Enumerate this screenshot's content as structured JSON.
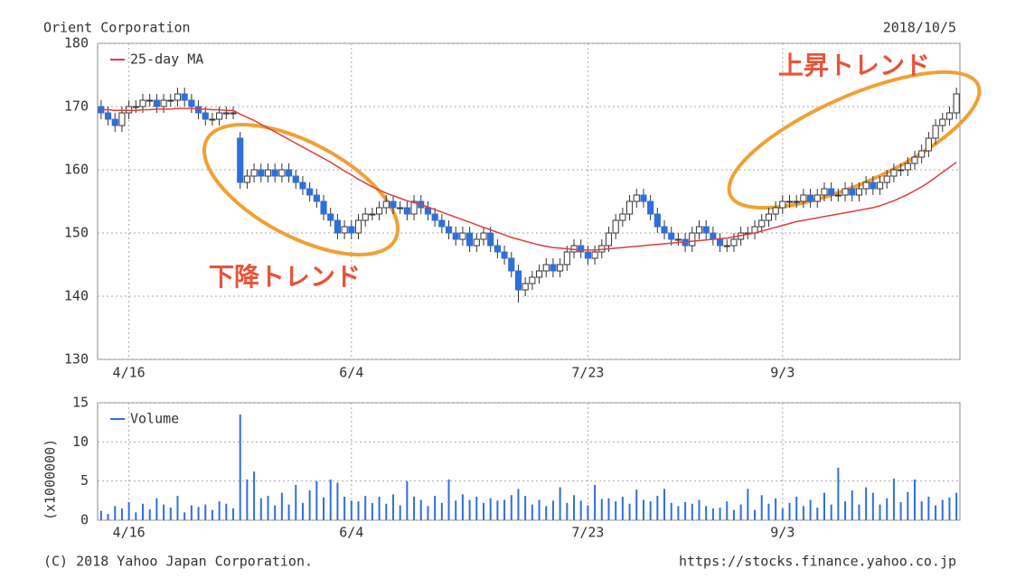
{
  "chart_data": [
    {
      "type": "candlestick",
      "title": "Orient Corporation",
      "date": "2018/10/5",
      "categories": [
        null,
        null,
        null,
        null,
        "4/16",
        null,
        null,
        null,
        null,
        null,
        null,
        null,
        null,
        null,
        null,
        null,
        null,
        null,
        null,
        null,
        null,
        null,
        null,
        null,
        null,
        null,
        null,
        null,
        null,
        null,
        null,
        null,
        null,
        null,
        null,
        null,
        "6/4",
        null,
        null,
        null,
        null,
        null,
        null,
        null,
        null,
        null,
        null,
        null,
        null,
        null,
        null,
        null,
        null,
        null,
        null,
        null,
        null,
        null,
        null,
        null,
        null,
        null,
        null,
        null,
        null,
        null,
        null,
        null,
        null,
        null,
        "7/23",
        null,
        null,
        null,
        null,
        null,
        null,
        null,
        null,
        null,
        null,
        null,
        null,
        null,
        null,
        null,
        null,
        null,
        null,
        null,
        null,
        null,
        null,
        null,
        null,
        null,
        null,
        null,
        "9/3",
        null,
        null,
        null,
        null,
        null,
        null,
        null,
        null,
        null,
        null,
        null,
        null,
        null,
        null,
        null,
        null,
        null,
        null,
        null,
        null,
        null,
        null,
        null,
        null,
        null
      ],
      "open": [
        170,
        169,
        168,
        167,
        169,
        170,
        170,
        171,
        171,
        170,
        171,
        171,
        172,
        171,
        170,
        169,
        168,
        168,
        169,
        169,
        165,
        158,
        159,
        160,
        159,
        160,
        159,
        160,
        159,
        158,
        157,
        156,
        155,
        153,
        152,
        150,
        151,
        150,
        152,
        153,
        153,
        154,
        155,
        154,
        154,
        153,
        155,
        154,
        153,
        152,
        151,
        150,
        149,
        150,
        148,
        149,
        150,
        148,
        147,
        146,
        144,
        141,
        142,
        143,
        144,
        145,
        144,
        145,
        147,
        148,
        147,
        146,
        147,
        148,
        150,
        152,
        153,
        155,
        156,
        155,
        153,
        151,
        150,
        149,
        149,
        148,
        150,
        151,
        150,
        149,
        148,
        148,
        149,
        150,
        150,
        151,
        152,
        153,
        154,
        155,
        155,
        155,
        156,
        155,
        156,
        157,
        156,
        156,
        157,
        156,
        157,
        158,
        157,
        158,
        159,
        160,
        160,
        161,
        162,
        163,
        165,
        167,
        168,
        169
      ],
      "high": [
        171,
        170,
        169,
        170,
        171,
        171,
        172,
        172,
        172,
        172,
        172,
        173,
        173,
        172,
        171,
        170,
        169,
        170,
        170,
        170,
        166,
        160,
        161,
        161,
        161,
        161,
        161,
        161,
        160,
        159,
        158,
        157,
        156,
        154,
        153,
        152,
        152,
        153,
        154,
        154,
        155,
        156,
        156,
        155,
        155,
        156,
        156,
        155,
        154,
        153,
        152,
        151,
        151,
        151,
        150,
        151,
        151,
        149,
        148,
        147,
        145,
        143,
        144,
        145,
        146,
        146,
        146,
        148,
        149,
        149,
        148,
        148,
        149,
        151,
        153,
        154,
        156,
        157,
        157,
        156,
        154,
        152,
        151,
        150,
        150,
        151,
        152,
        152,
        151,
        150,
        149,
        150,
        151,
        151,
        152,
        153,
        154,
        155,
        156,
        156,
        156,
        157,
        157,
        157,
        158,
        158,
        157,
        158,
        158,
        158,
        159,
        159,
        159,
        160,
        161,
        161,
        162,
        163,
        164,
        166,
        168,
        169,
        170,
        173
      ],
      "low": [
        168,
        167,
        166,
        166,
        168,
        169,
        169,
        170,
        169,
        169,
        170,
        170,
        170,
        169,
        168,
        167,
        167,
        167,
        168,
        168,
        157,
        157,
        158,
        158,
        158,
        158,
        158,
        158,
        157,
        156,
        155,
        154,
        152,
        151,
        149,
        149,
        149,
        149,
        151,
        152,
        152,
        153,
        153,
        153,
        152,
        152,
        153,
        152,
        151,
        150,
        149,
        148,
        148,
        147,
        147,
        148,
        147,
        146,
        145,
        143,
        139,
        140,
        141,
        142,
        143,
        143,
        143,
        144,
        146,
        146,
        145,
        145,
        146,
        147,
        149,
        151,
        152,
        154,
        154,
        152,
        150,
        149,
        148,
        148,
        147,
        147,
        149,
        149,
        148,
        147,
        147,
        147,
        148,
        149,
        149,
        150,
        151,
        152,
        153,
        154,
        154,
        154,
        154,
        154,
        155,
        155,
        155,
        155,
        155,
        155,
        156,
        156,
        156,
        157,
        158,
        159,
        159,
        160,
        161,
        162,
        164,
        166,
        167,
        168
      ],
      "close": [
        169,
        168,
        167,
        169,
        170,
        170,
        171,
        171,
        170,
        171,
        171,
        172,
        171,
        170,
        169,
        168,
        168,
        169,
        169,
        169,
        158,
        159,
        160,
        159,
        160,
        159,
        160,
        159,
        158,
        157,
        156,
        155,
        153,
        152,
        150,
        151,
        150,
        152,
        153,
        153,
        154,
        155,
        154,
        154,
        153,
        155,
        154,
        153,
        152,
        151,
        150,
        149,
        150,
        148,
        149,
        150,
        148,
        147,
        146,
        144,
        141,
        142,
        143,
        144,
        145,
        144,
        145,
        147,
        148,
        147,
        146,
        147,
        148,
        150,
        152,
        153,
        155,
        156,
        155,
        153,
        151,
        150,
        149,
        149,
        148,
        150,
        151,
        150,
        149,
        148,
        148,
        149,
        150,
        150,
        151,
        152,
        153,
        154,
        155,
        155,
        155,
        156,
        155,
        156,
        157,
        156,
        156,
        157,
        156,
        157,
        158,
        157,
        158,
        159,
        160,
        160,
        161,
        162,
        163,
        165,
        167,
        168,
        169,
        172
      ],
      "up_color": "#ffffff",
      "down_color": "#2f6fdc",
      "series": [
        {
          "name": "25-day MA",
          "color": "#e03c3c",
          "values": [
            169.5,
            169.5,
            169.4,
            169.4,
            169.4,
            169.4,
            169.5,
            169.5,
            169.6,
            169.6,
            169.6,
            169.7,
            169.7,
            169.7,
            169.6,
            169.6,
            169.5,
            169.5,
            169.4,
            169.4,
            168.8,
            168.3,
            167.8,
            167.2,
            166.6,
            166.0,
            165.4,
            164.8,
            164.2,
            163.6,
            163.0,
            162.4,
            161.8,
            161.2,
            160.5,
            159.8,
            159.2,
            158.5,
            157.9,
            157.3,
            156.8,
            156.3,
            155.9,
            155.5,
            155.1,
            154.8,
            154.5,
            154.1,
            153.7,
            153.3,
            152.9,
            152.5,
            152.1,
            151.7,
            151.3,
            150.9,
            150.5,
            150.1,
            149.7,
            149.3,
            149.0,
            148.7,
            148.4,
            148.1,
            147.9,
            147.7,
            147.6,
            147.5,
            147.4,
            147.3,
            147.3,
            147.3,
            147.4,
            147.5,
            147.6,
            147.7,
            147.8,
            147.9,
            148.0,
            148.1,
            148.2,
            148.3,
            148.4,
            148.5,
            148.6,
            148.7,
            148.8,
            148.9,
            149.0,
            149.1,
            149.2,
            149.4,
            149.6,
            149.8,
            150.0,
            150.3,
            150.6,
            150.9,
            151.2,
            151.5,
            151.8,
            152.0,
            152.2,
            152.4,
            152.6,
            152.8,
            153.0,
            153.2,
            153.4,
            153.6,
            153.8,
            154.0,
            154.3,
            154.7,
            155.1,
            155.6,
            156.1,
            156.7,
            157.3,
            158.0,
            158.8,
            159.6,
            160.4,
            161.2
          ]
        }
      ],
      "ylim": [
        130,
        180
      ],
      "yticks": [
        130,
        140,
        150,
        160,
        170,
        180
      ],
      "grid": true,
      "legend": "top-left",
      "annotations": [
        "上昇トレンド",
        "下降トレンド"
      ]
    },
    {
      "type": "bar",
      "ylabel": "(x1000000)",
      "ylim": [
        0,
        15
      ],
      "yticks": [
        0,
        5,
        10,
        15
      ],
      "grid": true,
      "legend": "top-left",
      "series": [
        {
          "name": "Volume",
          "color": "#2f6fdc",
          "values": [
            1.2,
            0.8,
            1.8,
            1.5,
            2.3,
            1.0,
            2.1,
            1.4,
            2.8,
            2.0,
            1.6,
            3.1,
            1.0,
            1.9,
            1.7,
            2.0,
            1.3,
            2.4,
            2.1,
            1.5,
            13.5,
            5.2,
            6.2,
            2.8,
            3.1,
            1.9,
            3.5,
            2.0,
            4.5,
            2.2,
            3.8,
            5.0,
            2.9,
            5.2,
            4.8,
            3.0,
            2.5,
            2.4,
            3.1,
            2.2,
            3.0,
            2.1,
            3.3,
            1.9,
            5.0,
            3.0,
            2.6,
            1.8,
            3.1,
            2.2,
            5.2,
            2.5,
            3.3,
            2.6,
            3.0,
            2.2,
            2.8,
            2.5,
            2.6,
            3.2,
            4.0,
            3.1,
            2.0,
            2.6,
            1.8,
            2.5,
            4.2,
            2.2,
            3.2,
            2.5,
            1.9,
            4.5,
            2.7,
            2.8,
            2.4,
            3.0,
            2.1,
            3.9,
            2.6,
            2.4,
            3.1,
            4.0,
            2.2,
            1.8,
            2.3,
            2.1,
            2.6,
            1.8,
            1.5,
            1.6,
            2.4,
            1.3,
            2.0,
            4.0,
            1.3,
            3.2,
            2.1,
            2.8,
            1.5,
            2.2,
            3.0,
            1.8,
            2.6,
            1.6,
            3.5,
            2.0,
            6.7,
            2.4,
            3.8,
            2.0,
            4.2,
            3.5,
            2.0,
            2.8,
            5.3,
            2.3,
            3.6,
            5.2,
            2.4,
            3.0,
            1.9,
            2.6,
            2.9,
            3.5
          ]
        }
      ]
    }
  ],
  "footer": {
    "copyright": "(C) 2018 Yahoo Japan Corporation.",
    "url": "https://stocks.finance.yahoo.co.jp"
  }
}
